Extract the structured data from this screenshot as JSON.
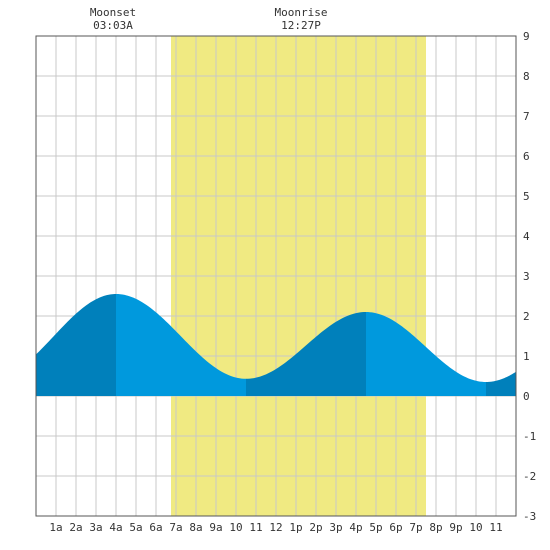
{
  "chart_data": {
    "type": "area",
    "title": "",
    "xlabel": "",
    "ylabel": "",
    "x_ticks": [
      "1a",
      "2a",
      "3a",
      "4a",
      "5a",
      "6a",
      "7a",
      "8a",
      "9a",
      "10",
      "11",
      "12",
      "1p",
      "2p",
      "3p",
      "4p",
      "5p",
      "6p",
      "7p",
      "8p",
      "9p",
      "10",
      "11"
    ],
    "y_ticks": [
      "9",
      "8",
      "7",
      "6",
      "5",
      "4",
      "3",
      "2",
      "1",
      "0",
      "-1",
      "-2",
      "-3"
    ],
    "xlim": [
      0,
      24
    ],
    "ylim": [
      -3,
      9
    ],
    "grid": true,
    "daylight_hours": [
      6.75,
      19.5
    ],
    "tide_extremes": [
      {
        "hour": 4.0,
        "height": 2.55,
        "type": "high"
      },
      {
        "hour": 10.5,
        "height": 0.43,
        "type": "low"
      },
      {
        "hour": 16.5,
        "height": 2.1,
        "type": "high"
      },
      {
        "hour": 22.5,
        "height": 0.35,
        "type": "low"
      }
    ],
    "tide_start": {
      "hour": 0,
      "height": 1.05
    },
    "tide_end": {
      "hour": 24,
      "height": 0.6
    },
    "annotations": [
      {
        "name": "moonset",
        "label": "Moonset",
        "time": "03:03A",
        "hour": 3.05
      },
      {
        "name": "moonrise",
        "label": "Moonrise",
        "time": "12:27P",
        "hour": 12.45
      }
    ],
    "colors": {
      "daylight": "#f0ea82",
      "tide_light": "#0099dd",
      "tide_dark": "#0080bb",
      "grid": "#c8c8c8",
      "border": "#555555"
    }
  }
}
